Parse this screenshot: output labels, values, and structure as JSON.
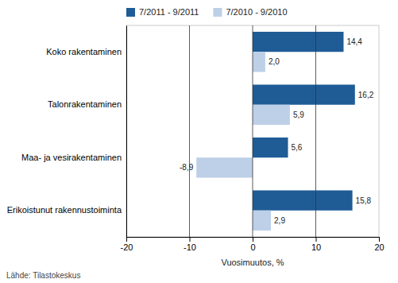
{
  "chart_data": {
    "type": "bar",
    "orientation": "horizontal",
    "categories": [
      "Erikoistunut rakennustoiminta",
      "Maa- ja vesirakentaminen",
      "Talonrakentaminen",
      "Koko rakentaminen"
    ],
    "series": [
      {
        "name": "7/2011 - 9/2011",
        "color": "#1F5C96",
        "values": [
          15.8,
          5.6,
          16.2,
          14.4
        ],
        "value_labels": [
          "15,8",
          "5,6",
          "16,2",
          "14,4"
        ]
      },
      {
        "name": "7/2010 - 9/2010",
        "color": "#BDD0E8",
        "values": [
          2.9,
          -8.9,
          5.9,
          2.0
        ],
        "value_labels": [
          "2,9",
          "-8,9",
          "5,9",
          "2,0"
        ]
      }
    ],
    "xlabel": "Vuosimuutos, %",
    "xlim": [
      -20,
      20
    ],
    "xticks": [
      -20,
      -10,
      0,
      10,
      20
    ],
    "vlines": [
      0,
      10,
      -10
    ],
    "data_labels": true,
    "legend": "upper left",
    "grid": false,
    "source": "Lähde: Tilastokeskus"
  }
}
